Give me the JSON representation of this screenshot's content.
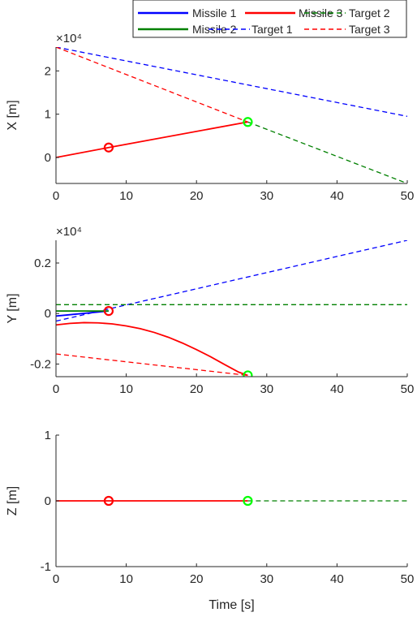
{
  "colors": {
    "missile1": "#0000ff",
    "missile2": "#008000",
    "missile3": "#ff0000",
    "target1": "#0000ff",
    "target2": "#008000",
    "target3": "#ff0000",
    "impact_marker": "#00ff00",
    "launch_marker": "#ff0000"
  },
  "legend": {
    "missile1": "Missile 1",
    "missile3": "Missile 3",
    "target2": "Target 2",
    "missile2": "Missile 2",
    "target1": "Target 1",
    "target3": "Target 3"
  },
  "chart_data": [
    {
      "type": "line",
      "ylabel": "X [m]",
      "xlabel": "",
      "exponent": "×10⁴",
      "xlim": [
        0,
        50
      ],
      "ylim": [
        -0.6,
        2.55
      ],
      "xticks": [
        0,
        10,
        20,
        30,
        40,
        50
      ],
      "yticks": [
        0,
        1,
        2
      ],
      "ytick_labels": [
        "0",
        "1",
        "2"
      ],
      "series": [
        {
          "name": "Target 1",
          "style": "dashed",
          "color": "#0000ff",
          "x": [
            0,
            50
          ],
          "y": [
            2.55,
            0.95
          ]
        },
        {
          "name": "Target 3",
          "style": "dashed",
          "color": "#ff0000",
          "x": [
            0,
            27.3
          ],
          "y": [
            2.55,
            0.82
          ]
        },
        {
          "name": "Target 2",
          "style": "dashed",
          "color": "#008000",
          "x": [
            27.3,
            50
          ],
          "y": [
            0.82,
            -0.6
          ]
        },
        {
          "name": "Missile 3",
          "style": "solid",
          "color": "#ff0000",
          "x": [
            0,
            7.5,
            27.3
          ],
          "y": [
            0.0,
            0.23,
            0.82
          ]
        }
      ],
      "markers": [
        {
          "color": "#ff0000",
          "x": 7.5,
          "y": 0.23
        },
        {
          "color": "#00ff00",
          "x": 27.3,
          "y": 0.82
        }
      ]
    },
    {
      "type": "line",
      "ylabel": "Y [m]",
      "xlabel": "",
      "exponent": "×10⁴",
      "xlim": [
        0,
        50
      ],
      "ylim": [
        -0.25,
        0.29
      ],
      "xticks": [
        0,
        10,
        20,
        30,
        40,
        50
      ],
      "yticks": [
        -0.2,
        0,
        0.2
      ],
      "ytick_labels": [
        "-0.2",
        "0",
        "0.2"
      ],
      "series": [
        {
          "name": "Target 1",
          "style": "dashed",
          "color": "#0000ff",
          "x": [
            0,
            50
          ],
          "y": [
            -0.03,
            0.29
          ]
        },
        {
          "name": "Target 2",
          "style": "dashed",
          "color": "#008000",
          "x": [
            0,
            50
          ],
          "y": [
            0.035,
            0.035
          ]
        },
        {
          "name": "Target 3",
          "style": "dashed",
          "color": "#ff0000",
          "x": [
            0,
            27.3
          ],
          "y": [
            -0.16,
            -0.245
          ]
        },
        {
          "name": "Missile 1",
          "style": "solid",
          "color": "#0000ff",
          "x": [
            0,
            7.5
          ],
          "y": [
            -0.01,
            0.01
          ]
        },
        {
          "name": "Missile 2",
          "style": "solid",
          "color": "#008000",
          "x": [
            0,
            7.5
          ],
          "y": [
            0.01,
            0.01
          ]
        },
        {
          "name": "Missile 3",
          "style": "solid",
          "color": "#ff0000",
          "x": [
            0,
            2,
            4,
            6,
            8,
            10,
            12,
            14,
            16,
            18,
            20,
            22,
            24,
            26,
            27.3
          ],
          "y": [
            -0.045,
            -0.039,
            -0.036,
            -0.037,
            -0.041,
            -0.049,
            -0.06,
            -0.075,
            -0.094,
            -0.117,
            -0.143,
            -0.171,
            -0.202,
            -0.232,
            -0.245
          ]
        }
      ],
      "markers": [
        {
          "color": "#ff0000",
          "x": 7.5,
          "y": 0.01
        },
        {
          "color": "#00ff00",
          "x": 27.3,
          "y": -0.245
        }
      ]
    },
    {
      "type": "line",
      "ylabel": "Z [m]",
      "xlabel": "Time [s]",
      "exponent": "",
      "xlim": [
        0,
        50
      ],
      "ylim": [
        -1,
        1
      ],
      "xticks": [
        0,
        10,
        20,
        30,
        40,
        50
      ],
      "yticks": [
        -1,
        0,
        1
      ],
      "ytick_labels": [
        "-1",
        "0",
        "1"
      ],
      "series": [
        {
          "name": "Target 2",
          "style": "dashed",
          "color": "#008000",
          "x": [
            27.3,
            50
          ],
          "y": [
            0,
            0
          ]
        },
        {
          "name": "Missile 3",
          "style": "solid",
          "color": "#ff0000",
          "x": [
            0,
            27.3
          ],
          "y": [
            0,
            0
          ]
        }
      ],
      "markers": [
        {
          "color": "#ff0000",
          "x": 7.5,
          "y": 0
        },
        {
          "color": "#00ff00",
          "x": 27.3,
          "y": 0
        }
      ]
    }
  ]
}
